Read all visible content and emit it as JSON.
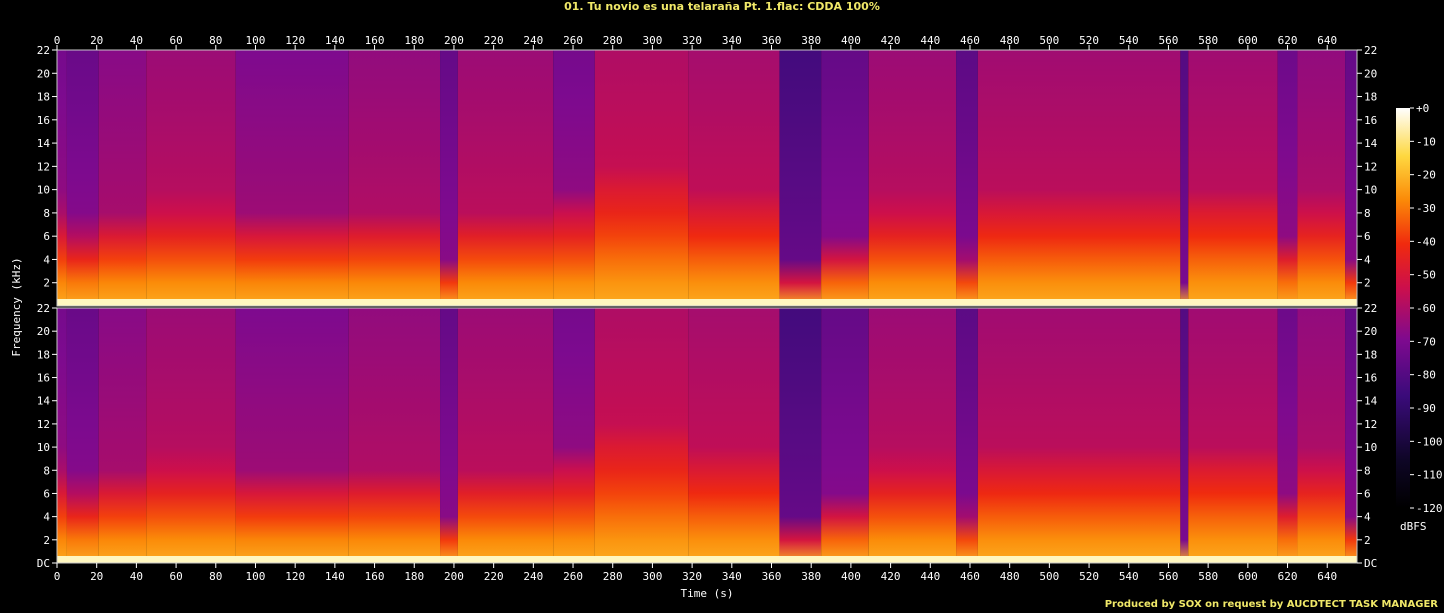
{
  "title": "01. Tu novio es una telaraña Pt. 1.flac: CDDA 100%",
  "credit": "Produced by SOX on request by AUCDTECT TASK MANAGER",
  "chart_data": {
    "type": "heatmap",
    "subtype": "spectrogram",
    "xlabel": "Time (s)",
    "ylabel": "Frequency (kHz)",
    "colorbar_label": "dBFS",
    "xlim": [
      0,
      655
    ],
    "ylim": [
      0,
      22
    ],
    "x_ticks": [
      "0",
      "20",
      "40",
      "60",
      "80",
      "100",
      "120",
      "140",
      "160",
      "180",
      "200",
      "220",
      "240",
      "260",
      "280",
      "300",
      "320",
      "340",
      "360",
      "380",
      "400",
      "420",
      "440",
      "460",
      "480",
      "500",
      "520",
      "540",
      "560",
      "580",
      "600",
      "620",
      "640"
    ],
    "y_ticks": [
      "DC",
      "2",
      "4",
      "6",
      "8",
      "10",
      "12",
      "14",
      "16",
      "18",
      "20",
      "22"
    ],
    "colorbar_ticks": [
      "+0",
      "-10",
      "-20",
      "-30",
      "-40",
      "-50",
      "-60",
      "-70",
      "-80",
      "-90",
      "-100",
      "-110",
      "-120"
    ],
    "colorbar_range_dbfs": [
      -120,
      0
    ],
    "channels": [
      "left",
      "right"
    ],
    "segments": [
      {
        "start": 0,
        "end": 5,
        "hi_dbfs": -72,
        "cutoff_khz": 8.5
      },
      {
        "start": 5,
        "end": 21,
        "hi_dbfs": -75,
        "cutoff_khz": 7.0
      },
      {
        "start": 21,
        "end": 45,
        "hi_dbfs": -68,
        "cutoff_khz": 8.0
      },
      {
        "start": 45,
        "end": 90,
        "hi_dbfs": -64,
        "cutoff_khz": 8.5
      },
      {
        "start": 90,
        "end": 147,
        "hi_dbfs": -70,
        "cutoff_khz": 8.0
      },
      {
        "start": 147,
        "end": 193,
        "hi_dbfs": -66,
        "cutoff_khz": 8.0
      },
      {
        "start": 193,
        "end": 202,
        "hi_dbfs": -76,
        "cutoff_khz": 4.0
      },
      {
        "start": 202,
        "end": 250,
        "hi_dbfs": -64,
        "cutoff_khz": 8.0
      },
      {
        "start": 250,
        "end": 271,
        "hi_dbfs": -72,
        "cutoff_khz": 10.0
      },
      {
        "start": 271,
        "end": 318,
        "hi_dbfs": -60,
        "cutoff_khz": 11.5
      },
      {
        "start": 318,
        "end": 364,
        "hi_dbfs": -62,
        "cutoff_khz": 9.5
      },
      {
        "start": 364,
        "end": 385,
        "hi_dbfs": -84,
        "cutoff_khz": 3.0
      },
      {
        "start": 385,
        "end": 409,
        "hi_dbfs": -76,
        "cutoff_khz": 5.5
      },
      {
        "start": 409,
        "end": 453,
        "hi_dbfs": -64,
        "cutoff_khz": 8.5
      },
      {
        "start": 453,
        "end": 464,
        "hi_dbfs": -78,
        "cutoff_khz": 4.5
      },
      {
        "start": 464,
        "end": 566,
        "hi_dbfs": -63,
        "cutoff_khz": 9.5
      },
      {
        "start": 566,
        "end": 570,
        "hi_dbfs": -80,
        "cutoff_khz": 2.0
      },
      {
        "start": 570,
        "end": 615,
        "hi_dbfs": -63,
        "cutoff_khz": 10.0
      },
      {
        "start": 615,
        "end": 625,
        "hi_dbfs": -74,
        "cutoff_khz": 6.0
      },
      {
        "start": 625,
        "end": 649,
        "hi_dbfs": -66,
        "cutoff_khz": 9.0
      },
      {
        "start": 649,
        "end": 655,
        "hi_dbfs": -76,
        "cutoff_khz": 4.0
      }
    ]
  }
}
